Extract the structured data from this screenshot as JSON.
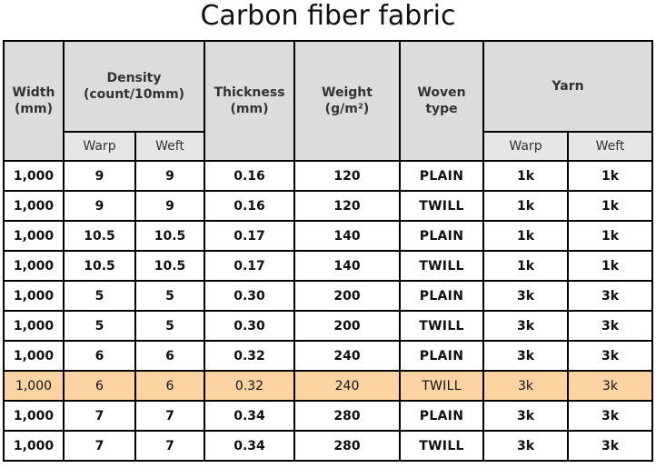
{
  "title": "Carbon fiber fabric",
  "headers": {
    "width": [
      "Width",
      "(mm)"
    ],
    "density": [
      "Density",
      "(count/10mm)"
    ],
    "thickness": [
      "Thickness",
      "(mm)"
    ],
    "weight": [
      "Weight",
      "(g/m²)"
    ],
    "woven": [
      "Woven",
      "type"
    ],
    "yarn": "Yarn",
    "warp": "Warp",
    "weft": "Weft"
  },
  "rows": [
    {
      "width": "1,000",
      "density_warp": "9",
      "density_weft": "9",
      "thickness": "0.16",
      "weight": "120",
      "woven": "PLAIN",
      "yarn_warp": "1k",
      "yarn_weft": "1k"
    },
    {
      "width": "1,000",
      "density_warp": "9",
      "density_weft": "9",
      "thickness": "0.16",
      "weight": "120",
      "woven": "TWILL",
      "yarn_warp": "1k",
      "yarn_weft": "1k"
    },
    {
      "width": "1,000",
      "density_warp": "10.5",
      "density_weft": "10.5",
      "thickness": "0.17",
      "weight": "140",
      "woven": "PLAIN",
      "yarn_warp": "1k",
      "yarn_weft": "1k"
    },
    {
      "width": "1,000",
      "density_warp": "10.5",
      "density_weft": "10.5",
      "thickness": "0.17",
      "weight": "140",
      "woven": "TWILL",
      "yarn_warp": "1k",
      "yarn_weft": "1k"
    },
    {
      "width": "1,000",
      "density_warp": "5",
      "density_weft": "5",
      "thickness": "0.30",
      "weight": "200",
      "woven": "PLAIN",
      "yarn_warp": "3k",
      "yarn_weft": "3k"
    },
    {
      "width": "1,000",
      "density_warp": "5",
      "density_weft": "5",
      "thickness": "0.30",
      "weight": "200",
      "woven": "TWILL",
      "yarn_warp": "3k",
      "yarn_weft": "3k"
    },
    {
      "width": "1,000",
      "density_warp": "6",
      "density_weft": "6",
      "thickness": "0.32",
      "weight": "240",
      "woven": "PLAIN",
      "yarn_warp": "3k",
      "yarn_weft": "3k"
    },
    {
      "width": "1,000",
      "density_warp": "6",
      "density_weft": "6",
      "thickness": "0.32",
      "weight": "240",
      "woven": "TWILL",
      "yarn_warp": "3k",
      "yarn_weft": "3k"
    },
    {
      "width": "1,000",
      "density_warp": "7",
      "density_weft": "7",
      "thickness": "0.34",
      "weight": "280",
      "woven": "PLAIN",
      "yarn_warp": "3k",
      "yarn_weft": "3k"
    },
    {
      "width": "1,000",
      "density_warp": "7",
      "density_weft": "7",
      "thickness": "0.34",
      "weight": "280",
      "woven": "TWILL",
      "yarn_warp": "3k",
      "yarn_weft": "3k"
    }
  ],
  "highlighted_row": 7,
  "colors": {
    "header_bg": "#dcdcdc",
    "highlight_bg": "#fcd3a1",
    "border": "#000000"
  }
}
